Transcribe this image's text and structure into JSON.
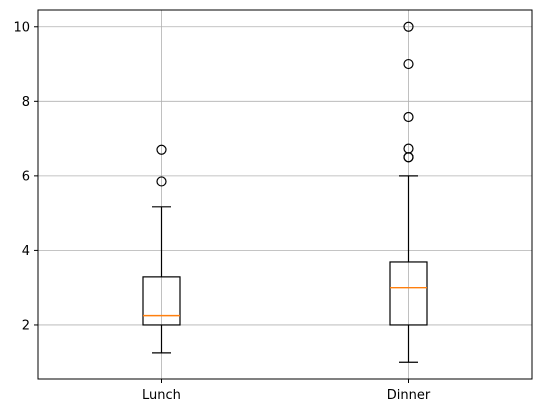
{
  "chart_data": {
    "type": "boxplot",
    "categories": [
      "Lunch",
      "Dinner"
    ],
    "title": "",
    "xlabel": "",
    "ylabel": "",
    "ylim": [
      0.55,
      10.45
    ],
    "yticks": [
      2,
      4,
      6,
      8,
      10
    ],
    "grid": true,
    "boxes": [
      {
        "category": "Lunch",
        "whisker_low": 1.25,
        "q1": 2.0,
        "median": 2.25,
        "q3": 3.29,
        "whisker_high": 5.17,
        "outliers": [
          5.85,
          6.7
        ]
      },
      {
        "category": "Dinner",
        "whisker_low": 1.0,
        "q1": 2.0,
        "median": 3.0,
        "q3": 3.69,
        "whisker_high": 6.0,
        "outliers": [
          6.5,
          6.5,
          6.73,
          7.58,
          9.0,
          10.0
        ]
      }
    ]
  },
  "colors": {
    "box": "#000000",
    "median": "#ff7f0e",
    "grid": "#b0b0b0",
    "flier": "#000000"
  }
}
